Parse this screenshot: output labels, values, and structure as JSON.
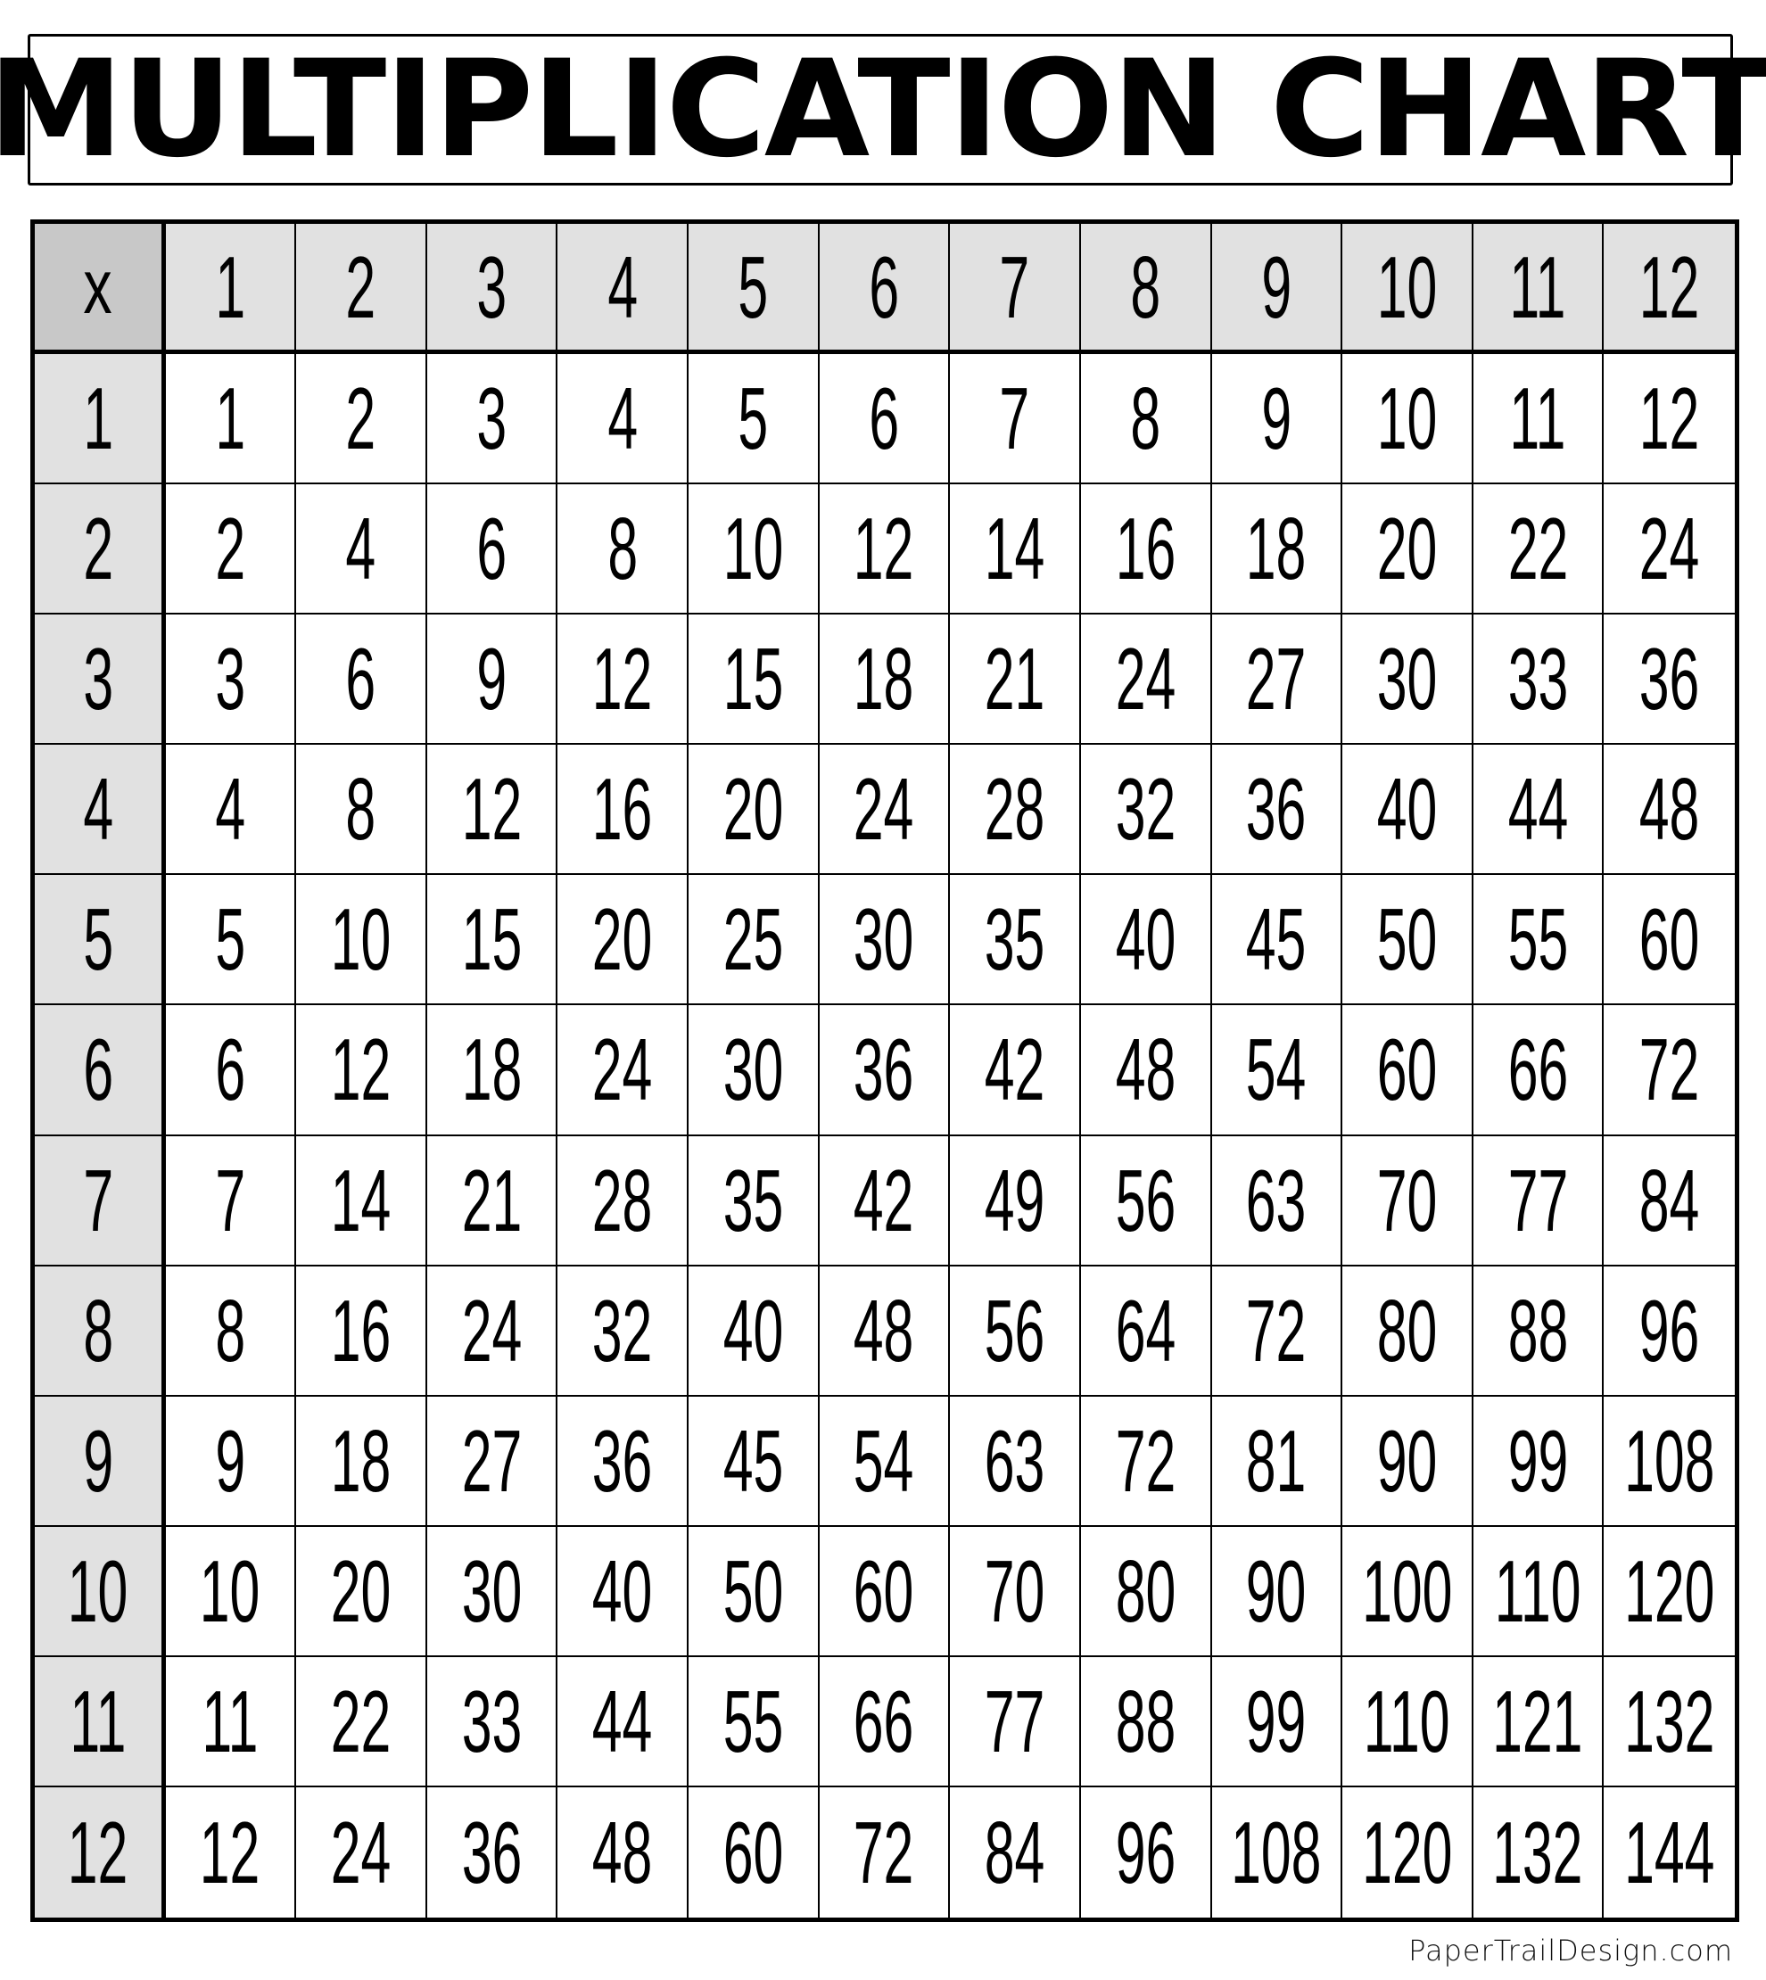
{
  "title": "MULTIPLICATION CHART",
  "footer": "PaperTrailDesign.com",
  "colors": {
    "header_bg": "#e1e1e1",
    "corner_bg": "#c8c8c8",
    "border": "#000000"
  },
  "chart_data": {
    "type": "table",
    "corner": "x",
    "column_headers": [
      "1",
      "2",
      "3",
      "4",
      "5",
      "6",
      "7",
      "8",
      "9",
      "10",
      "11",
      "12"
    ],
    "row_headers": [
      "1",
      "2",
      "3",
      "4",
      "5",
      "6",
      "7",
      "8",
      "9",
      "10",
      "11",
      "12"
    ],
    "rows": [
      [
        "1",
        "2",
        "3",
        "4",
        "5",
        "6",
        "7",
        "8",
        "9",
        "10",
        "11",
        "12"
      ],
      [
        "2",
        "4",
        "6",
        "8",
        "10",
        "12",
        "14",
        "16",
        "18",
        "20",
        "22",
        "24"
      ],
      [
        "3",
        "6",
        "9",
        "12",
        "15",
        "18",
        "21",
        "24",
        "27",
        "30",
        "33",
        "36"
      ],
      [
        "4",
        "8",
        "12",
        "16",
        "20",
        "24",
        "28",
        "32",
        "36",
        "40",
        "44",
        "48"
      ],
      [
        "5",
        "10",
        "15",
        "20",
        "25",
        "30",
        "35",
        "40",
        "45",
        "50",
        "55",
        "60"
      ],
      [
        "6",
        "12",
        "18",
        "24",
        "30",
        "36",
        "42",
        "48",
        "54",
        "60",
        "66",
        "72"
      ],
      [
        "7",
        "14",
        "21",
        "28",
        "35",
        "42",
        "49",
        "56",
        "63",
        "70",
        "77",
        "84"
      ],
      [
        "8",
        "16",
        "24",
        "32",
        "40",
        "48",
        "56",
        "64",
        "72",
        "80",
        "88",
        "96"
      ],
      [
        "9",
        "18",
        "27",
        "36",
        "45",
        "54",
        "63",
        "72",
        "81",
        "90",
        "99",
        "108"
      ],
      [
        "10",
        "20",
        "30",
        "40",
        "50",
        "60",
        "70",
        "80",
        "90",
        "100",
        "110",
        "120"
      ],
      [
        "11",
        "22",
        "33",
        "44",
        "55",
        "66",
        "77",
        "88",
        "99",
        "110",
        "121",
        "132"
      ],
      [
        "12",
        "24",
        "36",
        "48",
        "60",
        "72",
        "84",
        "96",
        "108",
        "120",
        "132",
        "144"
      ]
    ]
  }
}
